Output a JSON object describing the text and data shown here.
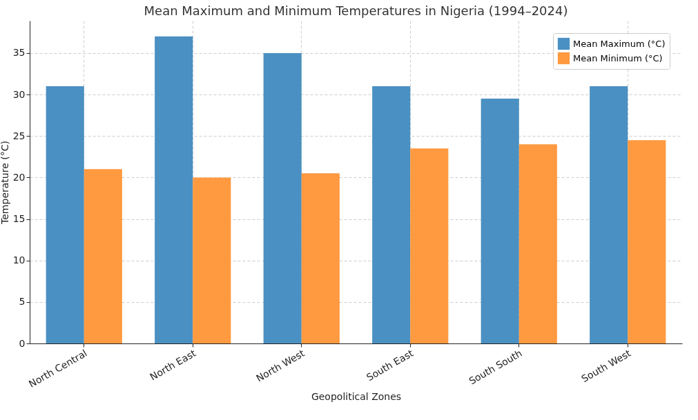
{
  "chart_data": {
    "type": "bar",
    "title": "Mean Maximum and Minimum Temperatures in Nigeria (1994–2024)",
    "xlabel": "Geopolitical Zones",
    "ylabel": "Temperature (°C)",
    "categories": [
      "North Central",
      "North East",
      "North West",
      "South East",
      "South South",
      "South West"
    ],
    "series": [
      {
        "name": "Mean Maximum (°C)",
        "color": "#4a90c2",
        "values": [
          31,
          37,
          35,
          31,
          29.5,
          31
        ]
      },
      {
        "name": "Mean Minimum (°C)",
        "color": "#ff9a40",
        "values": [
          21,
          20,
          20.5,
          23.5,
          24,
          24.5
        ]
      }
    ],
    "ylim": [
      0,
      38.9
    ],
    "yticks": [
      0,
      5,
      10,
      15,
      20,
      25,
      30,
      35
    ],
    "grid": true,
    "legend": "top right"
  }
}
